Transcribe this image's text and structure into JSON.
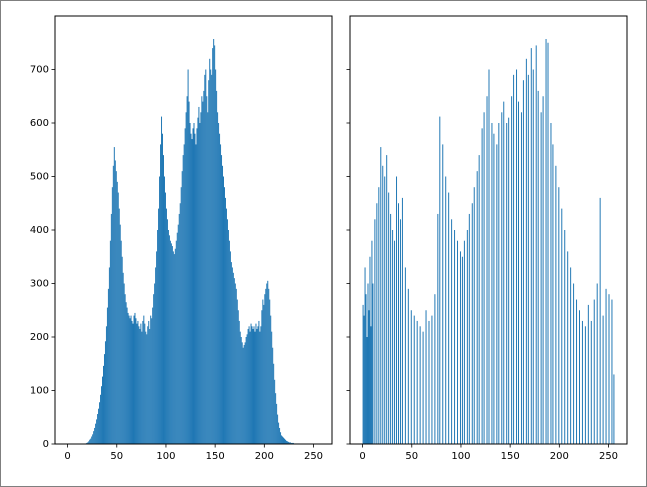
{
  "chart_data": [
    {
      "type": "bar",
      "color": "#1f77b4",
      "x": [
        18,
        19,
        20,
        21,
        22,
        23,
        24,
        25,
        26,
        27,
        28,
        29,
        30,
        31,
        32,
        33,
        34,
        35,
        36,
        37,
        38,
        39,
        40,
        41,
        42,
        43,
        44,
        45,
        46,
        47,
        48,
        49,
        50,
        51,
        52,
        53,
        54,
        55,
        56,
        57,
        58,
        59,
        60,
        61,
        62,
        63,
        64,
        65,
        66,
        67,
        68,
        69,
        70,
        71,
        72,
        73,
        74,
        75,
        76,
        77,
        78,
        79,
        80,
        81,
        82,
        83,
        84,
        85,
        86,
        87,
        88,
        89,
        90,
        91,
        92,
        93,
        94,
        95,
        96,
        97,
        98,
        99,
        100,
        101,
        102,
        103,
        104,
        105,
        106,
        107,
        108,
        109,
        110,
        111,
        112,
        113,
        114,
        115,
        116,
        117,
        118,
        119,
        120,
        121,
        122,
        123,
        124,
        125,
        126,
        127,
        128,
        129,
        130,
        131,
        132,
        133,
        134,
        135,
        136,
        137,
        138,
        139,
        140,
        141,
        142,
        143,
        144,
        145,
        146,
        147,
        148,
        149,
        150,
        151,
        152,
        153,
        154,
        155,
        156,
        157,
        158,
        159,
        160,
        161,
        162,
        163,
        164,
        165,
        166,
        167,
        168,
        169,
        170,
        171,
        172,
        173,
        174,
        175,
        176,
        177,
        178,
        179,
        180,
        181,
        182,
        183,
        184,
        185,
        186,
        187,
        188,
        189,
        190,
        191,
        192,
        193,
        194,
        195,
        196,
        197,
        198,
        199,
        200,
        201,
        202,
        203,
        204,
        205,
        206,
        207,
        208,
        209,
        210,
        211,
        212,
        213,
        214,
        215,
        216,
        217,
        218,
        219,
        220,
        221,
        222,
        223,
        224,
        225,
        226,
        227,
        228,
        229,
        230,
        231,
        232,
        233,
        234,
        235
      ],
      "values": [
        1,
        2,
        3,
        5,
        8,
        10,
        14,
        18,
        24,
        30,
        38,
        46,
        56,
        66,
        78,
        92,
        108,
        126,
        146,
        168,
        192,
        220,
        255,
        290,
        330,
        380,
        430,
        480,
        520,
        555,
        530,
        510,
        490,
        470,
        440,
        410,
        380,
        350,
        320,
        300,
        280,
        265,
        255,
        245,
        240,
        235,
        240,
        230,
        225,
        240,
        245,
        235,
        225,
        230,
        220,
        215,
        225,
        210,
        230,
        240,
        225,
        210,
        205,
        220,
        230,
        215,
        240,
        235,
        255,
        280,
        300,
        330,
        360,
        400,
        440,
        500,
        560,
        612,
        580,
        540,
        500,
        470,
        440,
        420,
        400,
        390,
        380,
        375,
        370,
        360,
        355,
        365,
        380,
        395,
        410,
        430,
        450,
        480,
        510,
        540,
        560,
        590,
        620,
        650,
        700,
        640,
        600,
        580,
        570,
        590,
        600,
        580,
        560,
        590,
        610,
        630,
        600,
        620,
        650,
        640,
        660,
        690,
        700,
        650,
        620,
        680,
        720,
        700,
        690,
        740,
        757,
        745,
        700,
        660,
        620,
        600,
        580,
        560,
        540,
        520,
        500,
        480,
        460,
        440,
        420,
        400,
        380,
        360,
        340,
        330,
        320,
        310,
        300,
        290,
        270,
        250,
        230,
        210,
        200,
        190,
        180,
        185,
        190,
        200,
        205,
        215,
        220,
        210,
        225,
        220,
        215,
        220,
        210,
        225,
        215,
        220,
        230,
        210,
        220,
        250,
        270,
        260,
        280,
        290,
        300,
        305,
        290,
        270,
        240,
        210,
        180,
        150,
        120,
        95,
        75,
        55,
        40,
        30,
        22,
        16,
        14,
        12,
        10,
        8,
        6,
        5,
        4,
        3,
        3,
        2,
        2,
        2,
        1,
        1,
        1,
        1,
        1,
        1
      ],
      "xlim": [
        -12.8,
        268.8
      ],
      "ylim": [
        0,
        800
      ],
      "xticks": [
        0,
        50,
        100,
        150,
        200,
        250
      ],
      "yticks": [
        0,
        100,
        200,
        300,
        400,
        500,
        600,
        700
      ]
    },
    {
      "type": "bar",
      "color": "#1f77b4",
      "x": [
        0,
        1,
        2,
        3,
        4,
        5,
        6,
        7,
        8,
        9,
        10,
        12,
        14,
        16,
        18,
        20,
        22,
        24,
        26,
        28,
        30,
        32,
        34,
        36,
        38,
        40,
        43,
        46,
        49,
        52,
        55,
        58,
        61,
        64,
        67,
        70,
        73,
        76,
        78,
        81,
        84,
        87,
        90,
        93,
        96,
        99,
        101,
        103,
        106,
        108,
        111,
        113,
        116,
        118,
        121,
        123,
        126,
        128,
        131,
        133,
        136,
        138,
        141,
        143,
        146,
        148,
        151,
        153,
        156,
        158,
        161,
        163,
        166,
        168,
        171,
        173,
        176,
        178,
        181,
        183,
        186,
        188,
        191,
        193,
        196,
        199,
        202,
        205,
        208,
        211,
        214,
        217,
        220,
        223,
        226,
        229,
        232,
        235,
        238,
        241,
        244,
        247,
        250,
        253,
        255
      ],
      "values": [
        260,
        240,
        330,
        280,
        200,
        300,
        250,
        350,
        220,
        380,
        300,
        420,
        450,
        480,
        555,
        520,
        500,
        540,
        470,
        430,
        400,
        380,
        500,
        450,
        420,
        460,
        330,
        290,
        250,
        240,
        230,
        220,
        210,
        250,
        230,
        240,
        280,
        430,
        612,
        560,
        500,
        470,
        420,
        400,
        380,
        360,
        350,
        380,
        400,
        430,
        450,
        480,
        510,
        540,
        590,
        620,
        650,
        700,
        600,
        580,
        560,
        600,
        620,
        640,
        600,
        610,
        650,
        690,
        700,
        640,
        620,
        680,
        720,
        690,
        740,
        700,
        745,
        660,
        620,
        650,
        757,
        750,
        600,
        560,
        520,
        480,
        440,
        400,
        360,
        330,
        300,
        270,
        250,
        230,
        220,
        260,
        230,
        270,
        300,
        460,
        240,
        290,
        280,
        270,
        130
      ],
      "xlim": [
        -12.8,
        268.8
      ],
      "ylim": [
        0,
        800
      ],
      "xticks": [
        0,
        50,
        100,
        150,
        200,
        250
      ]
    }
  ]
}
